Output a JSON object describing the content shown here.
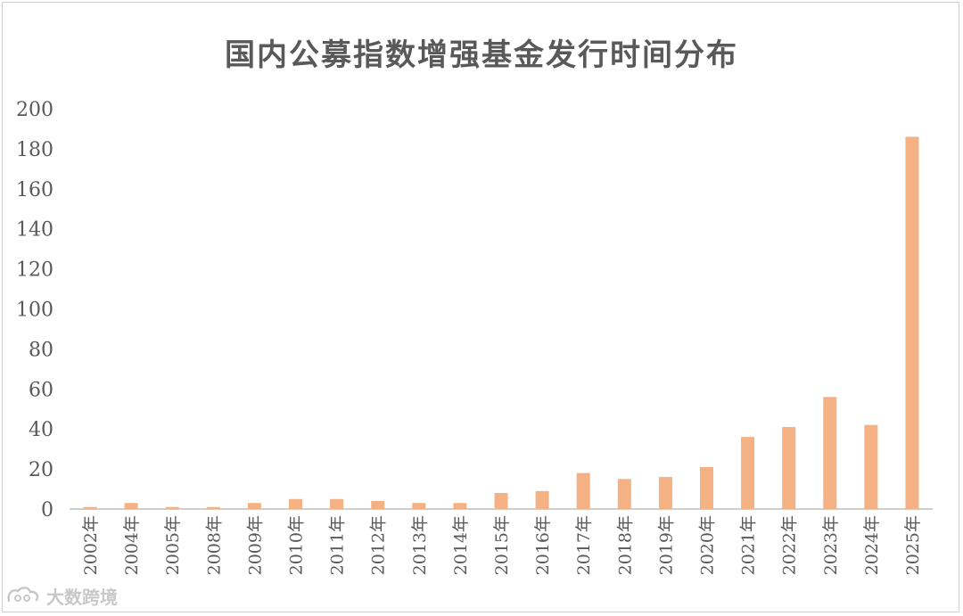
{
  "chart_data": {
    "type": "bar",
    "title": "国内公募指数增强基金发行时间分布",
    "xlabel": "",
    "ylabel": "",
    "categories": [
      "2002年",
      "2004年",
      "2005年",
      "2008年",
      "2009年",
      "2010年",
      "2011年",
      "2012年",
      "2013年",
      "2014年",
      "2015年",
      "2016年",
      "2017年",
      "2018年",
      "2019年",
      "2020年",
      "2021年",
      "2022年",
      "2023年",
      "2024年",
      "2025年"
    ],
    "values": [
      1,
      3,
      1,
      1,
      3,
      5,
      5,
      4,
      3,
      3,
      8,
      9,
      18,
      15,
      16,
      21,
      36,
      41,
      56,
      42,
      186
    ],
    "ylim": [
      0,
      200
    ],
    "yticks": [
      0,
      20,
      40,
      60,
      80,
      100,
      120,
      140,
      160,
      180,
      200
    ],
    "grid": false,
    "bar_color": "#F4B183",
    "axis_color": "#bfbfbf"
  },
  "watermark": {
    "logo_icon": "datajingjing-logo-icon",
    "text": "大数跨境"
  }
}
